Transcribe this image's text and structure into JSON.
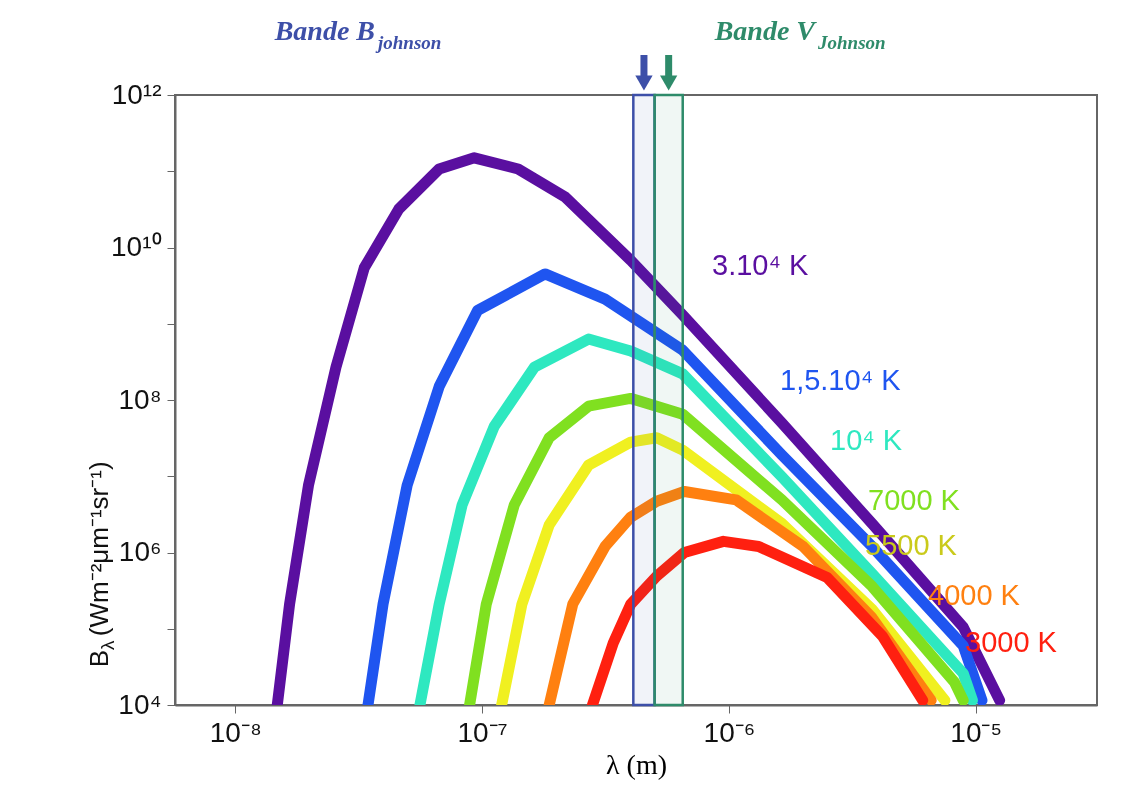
{
  "chart_data": {
    "type": "line",
    "xlabel": "λ   (m)",
    "ylabel": "B$_{λ}$ (Wm⁻²μm⁻¹sr⁻¹)",
    "log": "xy",
    "xlim": [
      5.7e-09,
      3.1e-05
    ],
    "ylim": [
      10000.0,
      1000000000000.0
    ],
    "xticks": [
      {
        "value": 1e-08,
        "label": "10⁻⁸"
      },
      {
        "value": 1e-07,
        "label": "10⁻⁷"
      },
      {
        "value": 1e-06,
        "label": "10⁻⁶"
      },
      {
        "value": 1e-05,
        "label": "10⁻⁵"
      }
    ],
    "yticks": [
      {
        "value": 10000.0,
        "label": "10⁴"
      },
      {
        "value": 100000.0,
        "label": null
      },
      {
        "value": 1000000.0,
        "label": "10⁶"
      },
      {
        "value": 10000000.0,
        "label": null
      },
      {
        "value": 100000000.0,
        "label": "10⁸"
      },
      {
        "value": 1000000000.0,
        "label": null
      },
      {
        "value": 10000000000.0,
        "label": "10¹⁰"
      },
      {
        "value": 100000000000.0,
        "label": null
      },
      {
        "value": 1000000000000.0,
        "label": "10¹²"
      }
    ],
    "grid": false,
    "marker": "none",
    "line_style": "solid",
    "bands": [
      {
        "axis": "x",
        "from": 4.1e-07,
        "to": 5e-07,
        "label": "Bande B$_{johnson}$",
        "color": "#3d4fa8"
      },
      {
        "axis": "x",
        "from": 5e-07,
        "to": 6.5e-07,
        "label": "Bande V$_{Johnson}$",
        "color": "#2e8b6a"
      }
    ],
    "series": [
      {
        "name": "3.10⁴ K",
        "color": "#5a0fa0",
        "x": [
          1.48e-08,
          1.66e-08,
          1.98e-08,
          2.56e-08,
          3.33e-08,
          4.6e-08,
          6.7e-08,
          9.3e-08,
          1.4e-07,
          2.17e-07,
          4e-07,
          6.5e-07,
          1.64e-06,
          3.8e-06,
          8.9e-06,
          1.25e-05
        ],
        "values": [
          10000.0,
          210000.0,
          7600000.0,
          270000000.0,
          5400000000.0,
          32000000000.0,
          107000000000.0,
          150000000000.0,
          107000000000.0,
          46000000000.0,
          6800000000.0,
          1300000000.0,
          50000000.0,
          2400000.0,
          105000.0,
          11500.0
        ]
      },
      {
        "name": "1,5.10⁴ K",
        "color": "#1f55f0",
        "x": [
          3.45e-08,
          3.97e-08,
          4.97e-08,
          6.7e-08,
          9.6e-08,
          1.8e-07,
          3.15e-07,
          6.5e-07,
          1.64e-06,
          3.8e-06,
          8.9e-06,
          1.06e-05
        ],
        "values": [
          10000.0,
          210000.0,
          7600000.0,
          150000000.0,
          1500000000.0,
          4500000000.0,
          2100000000.0,
          450000000.0,
          19000000.0,
          1200000.0,
          60000.0,
          11500.0
        ]
      },
      {
        "name": "10⁴ K",
        "color": "#2ee8c0",
        "x": [
          5.6e-08,
          6.7e-08,
          8.3e-08,
          1.12e-07,
          1.63e-07,
          2.7e-07,
          4e-07,
          6.5e-07,
          1.64e-06,
          3.8e-06,
          8.9e-06,
          9.7e-06
        ],
        "values": [
          10000.0,
          210000.0,
          4200000.0,
          45000000.0,
          270000000.0,
          630000000.0,
          440000000.0,
          220000000.0,
          9800000.0,
          530000.0,
          26000.0,
          11500.0
        ]
      },
      {
        "name": "7000 K",
        "color": "#80e020",
        "x": [
          8.9e-08,
          1.04e-07,
          1.35e-07,
          1.87e-07,
          2.7e-07,
          4e-07,
          6.5e-07,
          1.64e-06,
          3.8e-06,
          8.2e-06,
          8.9e-06
        ],
        "values": [
          10000.0,
          210000.0,
          4200000.0,
          32000000.0,
          83000000.0,
          105000000.0,
          65000000.0,
          4900000.0,
          360000.0,
          20000.0,
          11500.0
        ]
      },
      {
        "name": "5500 K",
        "color": "#f0f020",
        "x": [
          1.2e-07,
          1.45e-07,
          1.87e-07,
          2.7e-07,
          4e-07,
          5.1e-07,
          6.5e-07,
          1.64e-06,
          3.8e-06,
          7.5e-06
        ],
        "values": [
          10000.0,
          210000.0,
          2300000.0,
          14000000.0,
          28000000.0,
          32000000.0,
          22000000.0,
          2400000.0,
          180000.0,
          11500.0
        ]
      },
      {
        "name": "4000 K",
        "color": "#ff8010",
        "x": [
          1.87e-07,
          2.33e-07,
          3.15e-07,
          4e-07,
          5.1e-07,
          6.6e-07,
          1.07e-06,
          2e-06,
          3.8e-06,
          6.6e-06
        ],
        "values": [
          10000.0,
          210000.0,
          1200000.0,
          2900000.0,
          4700000.0,
          6300000.0,
          4900000.0,
          1200000.0,
          140000.0,
          11500.0
        ]
      },
      {
        "name": "3000 K",
        "color": "#ff2010",
        "x": [
          2.8e-07,
          3.4e-07,
          4e-07,
          5.1e-07,
          6.6e-07,
          9.5e-07,
          1.32e-06,
          2.5e-06,
          4.2e-06,
          6.1e-06
        ],
        "values": [
          10000.0,
          65000.0,
          210000.0,
          490000.0,
          1000000.0,
          1400000.0,
          1200000.0,
          470000.0,
          79000.0,
          11500.0
        ]
      }
    ]
  }
}
